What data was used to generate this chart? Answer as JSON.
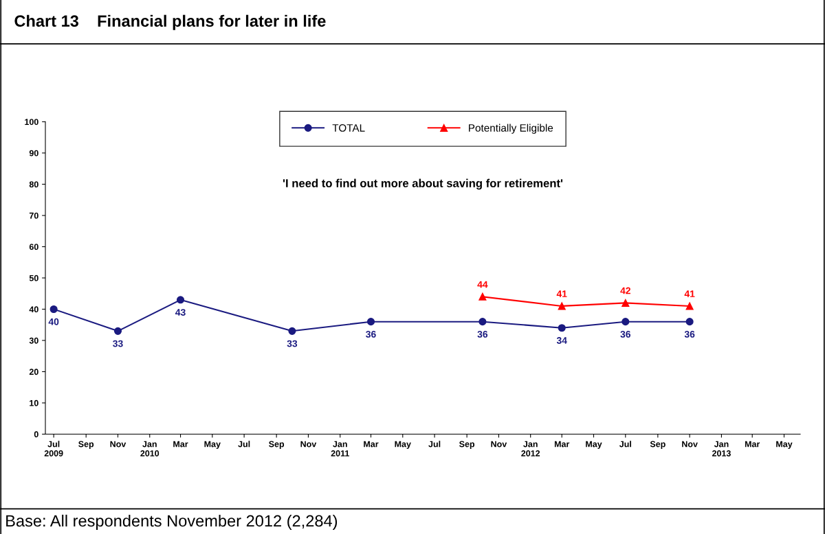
{
  "chart_data": {
    "type": "line",
    "title": "Chart 13    Financial plans for later in life",
    "subtitle": "'I need to find out more about saving for retirement'",
    "annotations": [
      "Base: All respondents November 2012 (2,284)"
    ],
    "series": [
      {
        "name": "TOTAL",
        "color": "#1a1a80",
        "marker": "circle",
        "x": [
          "2009-07",
          "2009-11",
          "2010-03",
          "2010-10",
          "2011-03",
          "2011-10",
          "2012-03",
          "2012-07",
          "2012-11"
        ],
        "values": [
          40,
          33,
          43,
          33,
          36,
          36,
          34,
          36,
          36
        ]
      },
      {
        "name": "Potentially Eligible",
        "color": "#ff0000",
        "marker": "triangle",
        "x": [
          "2011-10",
          "2012-03",
          "2012-07",
          "2012-11"
        ],
        "values": [
          44,
          41,
          42,
          41
        ]
      }
    ],
    "data_labels": true,
    "legend": "top",
    "grid": false,
    "line_style": "solid",
    "xlim": [
      "2009-06-15",
      "2013-06-01"
    ],
    "xticks": [
      {
        "value": "2009-07",
        "label": "Jul\n2009"
      },
      {
        "value": "2009-09",
        "label": "Sep"
      },
      {
        "value": "2009-11",
        "label": "Nov"
      },
      {
        "value": "2010-01",
        "label": "Jan\n2010"
      },
      {
        "value": "2010-03",
        "label": "Mar"
      },
      {
        "value": "2010-05",
        "label": "May"
      },
      {
        "value": "2010-07",
        "label": "Jul"
      },
      {
        "value": "2010-09",
        "label": "Sep"
      },
      {
        "value": "2010-11",
        "label": "Nov"
      },
      {
        "value": "2011-01",
        "label": "Jan\n2011"
      },
      {
        "value": "2011-03",
        "label": "Mar"
      },
      {
        "value": "2011-05",
        "label": "May"
      },
      {
        "value": "2011-07",
        "label": "Jul"
      },
      {
        "value": "2011-09",
        "label": "Sep"
      },
      {
        "value": "2011-11",
        "label": "Nov"
      },
      {
        "value": "2012-01",
        "label": "Jan\n2012"
      },
      {
        "value": "2012-03",
        "label": "Mar"
      },
      {
        "value": "2012-05",
        "label": "May"
      },
      {
        "value": "2012-07",
        "label": "Jul"
      },
      {
        "value": "2012-09",
        "label": "Sep"
      },
      {
        "value": "2012-11",
        "label": "Nov"
      },
      {
        "value": "2013-01",
        "label": "Jan\n2013"
      },
      {
        "value": "2013-03",
        "label": "Mar"
      },
      {
        "value": "2013-05",
        "label": "May"
      }
    ],
    "ylim": [
      0,
      100
    ],
    "yticks": [
      0,
      10,
      20,
      30,
      40,
      50,
      60,
      70,
      80,
      90,
      100
    ]
  }
}
